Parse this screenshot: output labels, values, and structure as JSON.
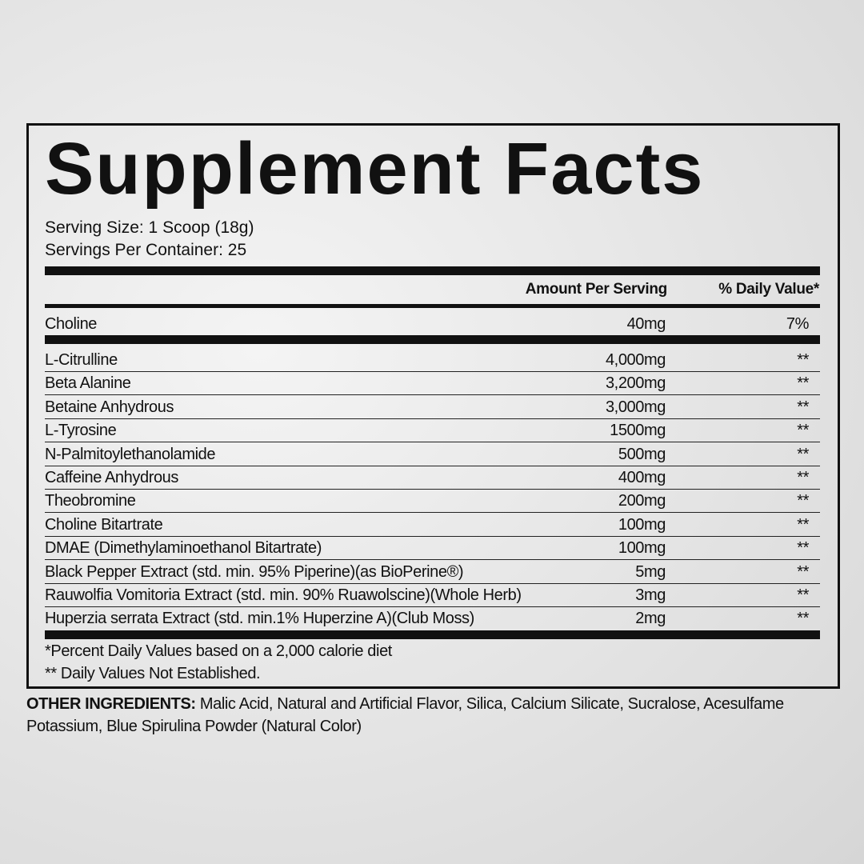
{
  "title": "Supplement Facts",
  "serving_size": "Serving Size: 1 Scoop (18g)",
  "servings_per_container": "Servings Per Container: 25",
  "header": {
    "amount": "Amount Per Serving",
    "dv": "% Daily Value*"
  },
  "primary": {
    "name": "Choline",
    "amount": "40mg",
    "dv": "7%"
  },
  "ingredients": [
    {
      "name": "L-Citrulline",
      "amount": "4,000mg",
      "dv": "**"
    },
    {
      "name": "Beta Alanine",
      "amount": "3,200mg",
      "dv": "**"
    },
    {
      "name": "Betaine Anhydrous",
      "amount": "3,000mg",
      "dv": "**"
    },
    {
      "name": "L-Tyrosine",
      "amount": "1500mg",
      "dv": "**"
    },
    {
      "name": "N-Palmitoylethanolamide",
      "amount": "500mg",
      "dv": "**"
    },
    {
      "name": "Caffeine Anhydrous",
      "amount": "400mg",
      "dv": "**"
    },
    {
      "name": "Theobromine",
      "amount": "200mg",
      "dv": "**"
    },
    {
      "name": "Choline Bitartrate",
      "amount": "100mg",
      "dv": "**"
    },
    {
      "name": "DMAE (Dimethylaminoethanol Bitartrate)",
      "amount": "100mg",
      "dv": "**"
    },
    {
      "name": "Black Pepper Extract (std. min. 95% Piperine)(as BioPerine®)",
      "amount": "5mg",
      "dv": "**"
    },
    {
      "name": "Rauwolfia Vomitoria Extract (std. min. 90% Ruawolscine)(Whole Herb)",
      "amount": "3mg",
      "dv": "**"
    },
    {
      "name": "Huperzia serrata Extract (std. min.1% Huperzine A)(Club Moss)",
      "amount": "2mg",
      "dv": "**"
    }
  ],
  "footnotes": [
    "*Percent Daily Values based on a 2,000 calorie diet",
    "** Daily Values Not Established."
  ],
  "other_ingredients": {
    "label": "OTHER INGREDIENTS:",
    "text": " Malic Acid, Natural and Artificial Flavor, Silica, Calcium Silicate, Sucralose, Acesulfame Potassium, Blue Spirulina Powder (Natural Color)"
  }
}
